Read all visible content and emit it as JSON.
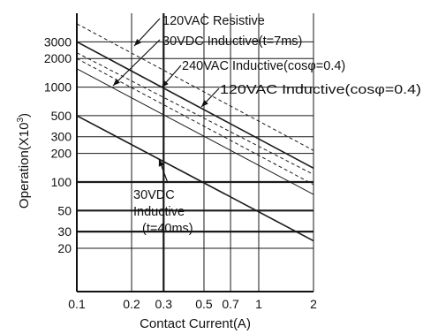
{
  "chart_data": {
    "type": "line",
    "title": "",
    "xlabel": "Contact Current(A)",
    "ylabel_main": "Operation(X10",
    "ylabel_sup": "3",
    "ylabel_close": ")",
    "x_scale": "log",
    "y_scale": "log",
    "xlim": [
      0.1,
      2
    ],
    "ylim": [
      7,
      6000
    ],
    "grid": true,
    "x_ticks": [
      {
        "value": 0.1,
        "label": "0.1"
      },
      {
        "value": 0.2,
        "label": "0.2"
      },
      {
        "value": 0.3,
        "label": "0.3"
      },
      {
        "value": 0.5,
        "label": "0.5"
      },
      {
        "value": 0.7,
        "label": "0.7"
      },
      {
        "value": 1,
        "label": "1"
      },
      {
        "value": 2,
        "label": "2"
      }
    ],
    "y_ticks": [
      {
        "value": 20,
        "label": "20"
      },
      {
        "value": 30,
        "label": "30"
      },
      {
        "value": 50,
        "label": "50"
      },
      {
        "value": 100,
        "label": "100"
      },
      {
        "value": 200,
        "label": "200"
      },
      {
        "value": 300,
        "label": "300"
      },
      {
        "value": 500,
        "label": "500"
      },
      {
        "value": 1000,
        "label": "1000"
      },
      {
        "value": 2000,
        "label": "2000"
      },
      {
        "value": 3000,
        "label": "3000"
      }
    ],
    "series": [
      {
        "name": "120VAC Resistive",
        "style": "dashed",
        "points": [
          [
            0.1,
            4650
          ],
          [
            2,
            215
          ]
        ]
      },
      {
        "name": "30VDC Inductive(t=7ms)",
        "style": "solid",
        "points": [
          [
            0.1,
            3000
          ],
          [
            2,
            140
          ]
        ]
      },
      {
        "name": "240VAC Inductive(cosφ=0.4)",
        "style": "dashed",
        "points": [
          [
            0.1,
            2000
          ],
          [
            2,
            94
          ]
        ]
      },
      {
        "name": "120VAC Inductive(cosφ=0.4)",
        "style": "solid",
        "points": [
          [
            0.1,
            1560
          ],
          [
            2,
            74
          ]
        ]
      },
      {
        "name": "",
        "style": "dashed",
        "points": [
          [
            0.1,
            2300
          ],
          [
            2,
            120
          ]
        ]
      },
      {
        "name": "30VDC Inductive (t=40ms)",
        "style": "solid",
        "points": [
          [
            0.1,
            500
          ],
          [
            2,
            24
          ]
        ]
      }
    ],
    "annotations": [
      {
        "id": "a-120vac-res",
        "lines": [
          "120VAC Resistive"
        ]
      },
      {
        "id": "a-30vdc-7ms",
        "lines": [
          "30VDC Inductive(t=7ms)"
        ]
      },
      {
        "id": "a-240vac-ind",
        "lines": [
          "240VAC Inductive(cosφ=0.4)"
        ]
      },
      {
        "id": "a-120vac-ind",
        "lines": [
          "120VAC Inductive(cosφ=0.4)"
        ]
      },
      {
        "id": "a-30vdc-40ms",
        "lines": [
          "30VDC",
          "Inductive",
          "(t=40ms)"
        ]
      }
    ]
  }
}
